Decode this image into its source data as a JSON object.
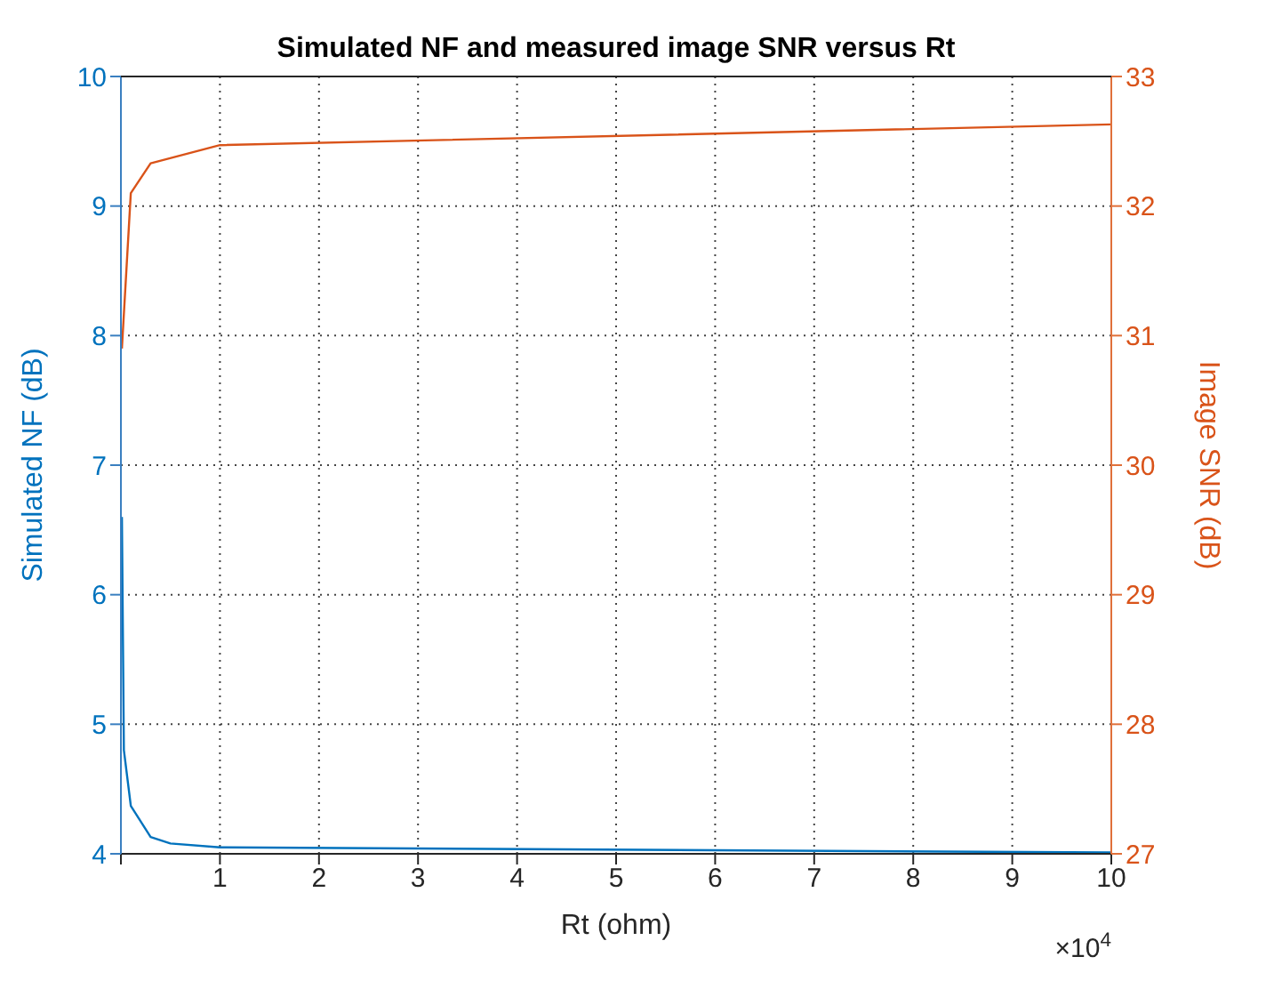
{
  "chart_data": {
    "type": "line",
    "title": "Simulated NF and measured image SNR versus Rt",
    "xlabel": "Rt (ohm)",
    "ylabel": "Simulated NF (dB)",
    "y2label": "Image SNR (dB)",
    "annotations": [
      "×10$^{4}$"
    ],
    "xlim": [
      0,
      10
    ],
    "xticks": [
      {
        "value": 0,
        "label": null
      },
      1,
      2,
      3,
      4,
      5,
      6,
      7,
      8,
      9,
      10
    ],
    "ylim": [
      4,
      10
    ],
    "yticks": [
      4,
      5,
      6,
      7,
      8,
      9,
      10
    ],
    "y2lim": [
      27,
      33
    ],
    "y2ticks": [
      27,
      28,
      29,
      30,
      31,
      32,
      33
    ],
    "grid": true,
    "marker": "none",
    "line_style": "solid",
    "series": [
      {
        "color": "#0072bd",
        "x": [
          0.01,
          0.03,
          0.1,
          0.3,
          0.5,
          1,
          10
        ],
        "values": [
          6.6,
          4.8,
          4.37,
          4.13,
          4.08,
          4.05,
          4.01
        ]
      },
      {
        "color": "#d95319",
        "axis": "y2",
        "x": [
          0.01,
          0.1,
          0.3,
          1,
          10
        ],
        "values": [
          30.9,
          32.1,
          32.33,
          32.47,
          32.63
        ]
      }
    ]
  }
}
